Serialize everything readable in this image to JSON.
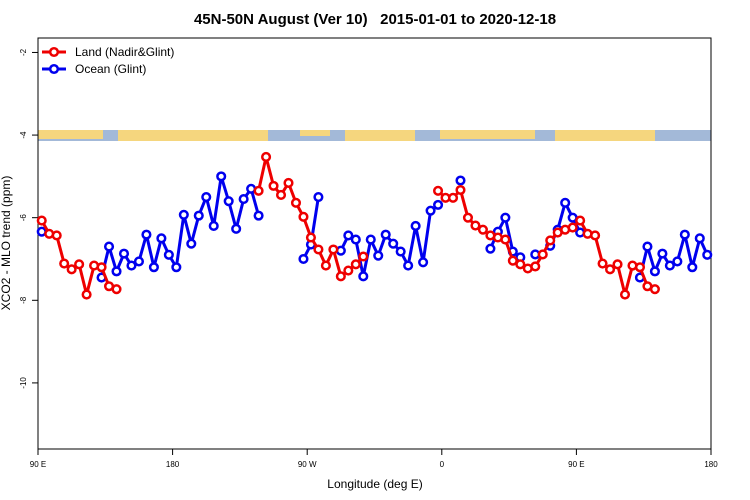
{
  "chart_data": {
    "type": "line",
    "title": "45N-50N August (Ver 10)   2015-01-01 to 2020-12-18",
    "xlabel": "Longitude (deg E)",
    "ylabel": "XCO2 - MLO trend (ppm)",
    "x": [
      92.5,
      97.5,
      102.5,
      107.5,
      112.5,
      117.5,
      122.5,
      127.5,
      132.5,
      137.5,
      142.5,
      147.5,
      152.5,
      157.5,
      162.5,
      167.5,
      172.5,
      177.5,
      182.5,
      187.5,
      192.5,
      197.5,
      202.5,
      207.5,
      212.5,
      217.5,
      222.5,
      227.5,
      232.5,
      237.5,
      242.5,
      247.5,
      252.5,
      257.5,
      262.5,
      267.5,
      272.5,
      277.5,
      282.5,
      287.5,
      292.5,
      297.5,
      302.5,
      307.5,
      312.5,
      317.5,
      322.5,
      327.5,
      332.5,
      337.5,
      342.5,
      347.5,
      352.5,
      357.5,
      362.5,
      367.5,
      372.5,
      377.5,
      382.5,
      387.5,
      392.5,
      397.5,
      402.5,
      407.5,
      412.5,
      417.5,
      422.5,
      427.5,
      432.5,
      437.5,
      442.5,
      447.5,
      452.5,
      457.5,
      462.5,
      467.5,
      472.5,
      477.5,
      482.5,
      487.5,
      492.5,
      497.5,
      502.5,
      507.5,
      512.5,
      517.5,
      522.5,
      527.5,
      532.5,
      537.5
    ],
    "series": [
      {
        "name": "Land (Nadir&Glint)",
        "color": "#ee0000",
        "values": [
          -6.07,
          -6.39,
          -6.43,
          -7.11,
          -7.25,
          -7.13,
          -7.86,
          -7.16,
          -7.2,
          -7.66,
          -7.73,
          null,
          null,
          null,
          null,
          null,
          null,
          null,
          null,
          null,
          null,
          null,
          null,
          null,
          null,
          null,
          null,
          null,
          null,
          -5.35,
          -4.53,
          -5.23,
          -5.45,
          -5.16,
          -5.64,
          -5.98,
          -6.48,
          -6.77,
          -7.16,
          -6.77,
          -7.42,
          -7.28,
          -7.13,
          -6.94,
          null,
          null,
          null,
          null,
          null,
          null,
          null,
          null,
          null,
          -5.35,
          -5.52,
          -5.52,
          -5.33,
          -6.0,
          -6.19,
          -6.29,
          -6.43,
          -6.48,
          -6.53,
          -7.04,
          -7.13,
          -7.23,
          -7.18,
          -6.89,
          -6.55,
          -6.36,
          -6.29,
          -6.24,
          -6.07,
          -6.39,
          -6.43,
          -7.11,
          -7.25,
          -7.13,
          -7.86,
          -7.16,
          -7.2,
          -7.66,
          -7.73,
          null,
          null,
          null,
          null,
          null,
          null,
          null
        ]
      },
      {
        "name": "Ocean (Glint)",
        "color": "#0000ee",
        "values": [
          -6.34,
          null,
          null,
          null,
          null,
          null,
          null,
          null,
          -7.45,
          -6.7,
          -7.3,
          -6.87,
          -7.16,
          -7.06,
          -6.41,
          -7.2,
          -6.5,
          -6.9,
          -7.2,
          -5.93,
          -6.63,
          -5.95,
          -5.5,
          -6.2,
          -5.0,
          -5.6,
          -6.27,
          -5.55,
          -5.3,
          -5.95,
          null,
          null,
          null,
          null,
          null,
          -7.0,
          -6.65,
          -5.5,
          null,
          null,
          -6.8,
          -6.43,
          -6.53,
          -7.42,
          -6.53,
          -6.92,
          -6.41,
          -6.63,
          -6.82,
          -7.16,
          -6.2,
          -7.08,
          -5.83,
          -5.69,
          null,
          null,
          -5.1,
          null,
          null,
          null,
          -6.75,
          -6.34,
          -6.0,
          -6.82,
          -6.96,
          null,
          -6.89,
          null,
          -6.68,
          -6.29,
          -5.64,
          -6.0,
          -6.36,
          null,
          null,
          null,
          null,
          null,
          null,
          null,
          -7.45,
          -6.7,
          -7.3,
          -6.87,
          -7.16,
          -7.06,
          -6.41,
          -7.2,
          -6.5,
          -6.9
        ]
      }
    ],
    "xlim": [
      90,
      540
    ],
    "xticks": [
      {
        "value": 90,
        "label": "90 E"
      },
      180,
      {
        "value": 270,
        "label": "90 W"
      },
      {
        "value": 360,
        "label": "0"
      },
      {
        "value": 450,
        "label": "90 E"
      },
      {
        "value": 540,
        "label": "180"
      }
    ],
    "ylim": [
      -11.6,
      -1.65
    ],
    "yticks": [
      -2,
      -4,
      -6,
      -8,
      -10
    ],
    "legend": "top-left"
  }
}
